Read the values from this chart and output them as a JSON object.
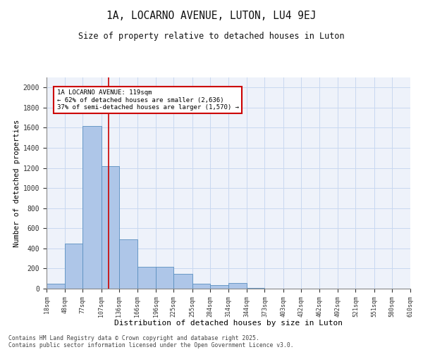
{
  "title_line1": "1A, LOCARNO AVENUE, LUTON, LU4 9EJ",
  "title_line2": "Size of property relative to detached houses in Luton",
  "xlabel": "Distribution of detached houses by size in Luton",
  "ylabel": "Number of detached properties",
  "annotation_line1": "1A LOCARNO AVENUE: 119sqm",
  "annotation_line2": "← 62% of detached houses are smaller (2,636)",
  "annotation_line3": "37% of semi-detached houses are larger (1,570) →",
  "property_size": 119,
  "bin_edges": [
    18,
    48,
    77,
    107,
    136,
    166,
    196,
    225,
    255,
    284,
    314,
    344,
    373,
    403,
    432,
    462,
    492,
    521,
    551,
    580,
    610
  ],
  "bar_heights": [
    50,
    450,
    1620,
    1220,
    490,
    215,
    215,
    150,
    50,
    35,
    55,
    10,
    0,
    0,
    0,
    0,
    0,
    0,
    0,
    0
  ],
  "bar_color": "#aec6e8",
  "bar_edge_color": "#5a8fc0",
  "vline_color": "#cc0000",
  "annotation_box_color": "#cc0000",
  "background_color": "#eef2fa",
  "grid_color": "#c8d8f0",
  "footer_line1": "Contains HM Land Registry data © Crown copyright and database right 2025.",
  "footer_line2": "Contains public sector information licensed under the Open Government Licence v3.0.",
  "ylim": [
    0,
    2100
  ],
  "yticks": [
    0,
    200,
    400,
    600,
    800,
    1000,
    1200,
    1400,
    1600,
    1800,
    2000
  ]
}
